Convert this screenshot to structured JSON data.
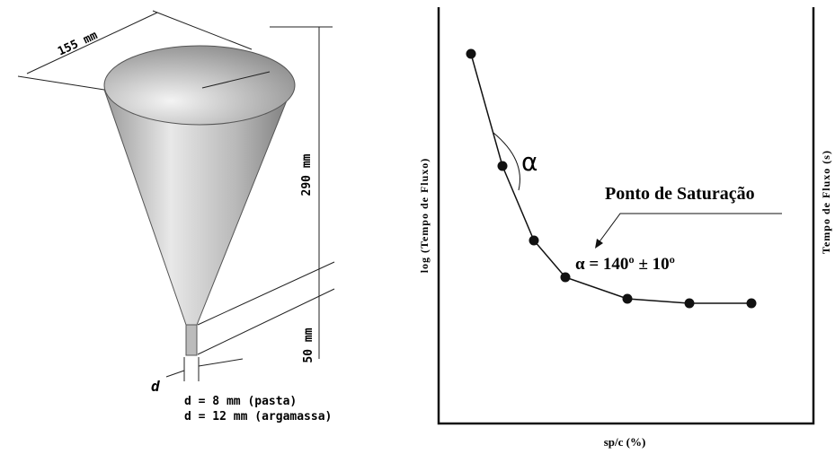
{
  "cone": {
    "top_diameter": "155 mm",
    "height": "290 mm",
    "stem_length": "50 mm",
    "d_symbol": "d",
    "d_pasta": "d = 8 mm (pasta)",
    "d_argamassa": "d = 12 mm (argamassa)"
  },
  "graph": {
    "angle_symbol": "α",
    "saturation_label": "Ponto de Saturação",
    "angle_value": "α = 140º ± 10º",
    "y_label_left": "log (Tempo de Fluxo)",
    "y_label_right": "Tempo de Fluxo (s)",
    "x_label": "sp/c (%)"
  }
}
